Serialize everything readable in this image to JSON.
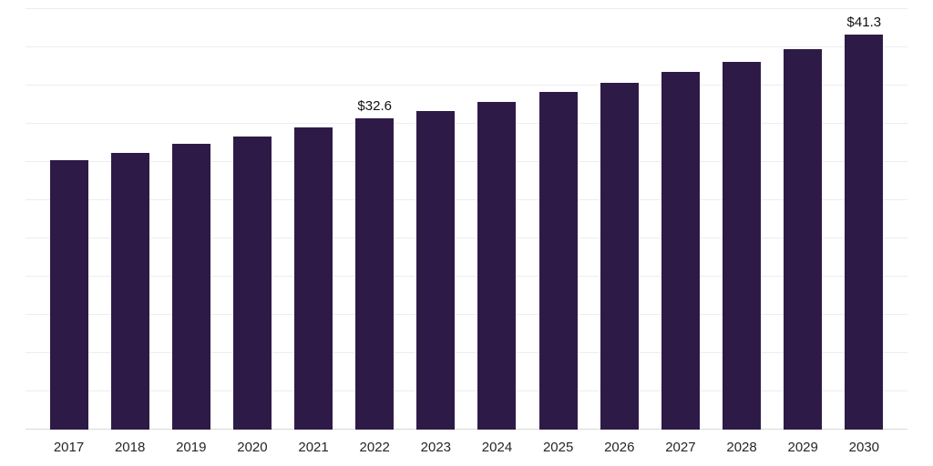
{
  "chart_data": {
    "type": "bar",
    "title": "",
    "xlabel": "",
    "ylabel": "",
    "categories": [
      "2017",
      "2018",
      "2019",
      "2020",
      "2021",
      "2022",
      "2023",
      "2024",
      "2025",
      "2026",
      "2027",
      "2028",
      "2029",
      "2030"
    ],
    "values": [
      28.2,
      29.0,
      29.9,
      30.7,
      31.6,
      32.6,
      33.3,
      34.3,
      35.3,
      36.3,
      37.4,
      38.5,
      39.8,
      41.3
    ],
    "data_labels": {
      "2022": "$32.6",
      "2030": "$41.3"
    },
    "ylim": [
      0,
      44
    ],
    "grid": true,
    "grid_step": 4,
    "legend": "none",
    "bar_color": "#2E1A47",
    "gridline_color": "#ededed",
    "axis_line_color": "#d9d9d9",
    "tick_label_color": "#262626",
    "value_label_color": "#111111"
  }
}
